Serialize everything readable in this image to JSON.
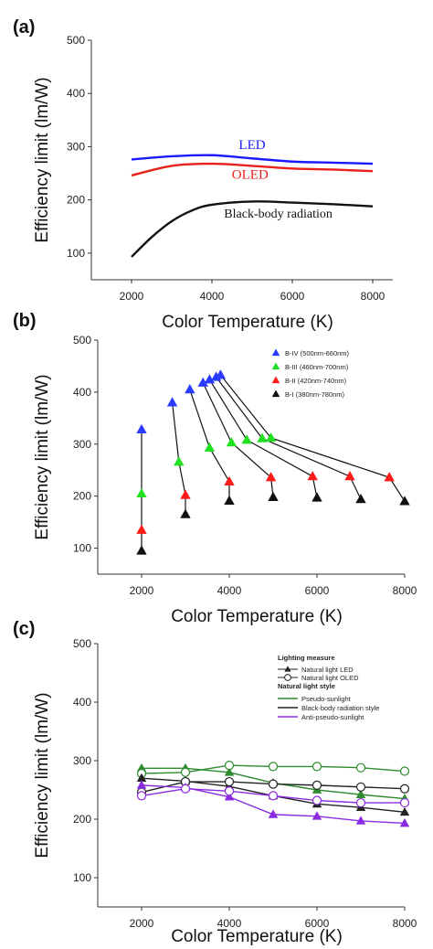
{
  "chart_data": [
    {
      "panel": "(a)",
      "type": "line",
      "xlabel": "Color Temperature (K)",
      "ylabel": "Efficiency limit (lm/W)",
      "xlim": [
        1000,
        8500
      ],
      "ylim": [
        50,
        500
      ],
      "xticks": [
        2000,
        4000,
        6000,
        8000
      ],
      "yticks": [
        100,
        200,
        300,
        400,
        500
      ],
      "series": [
        {
          "name": "LED",
          "color": "#1a1aff",
          "x": [
            2000,
            3000,
            4000,
            5000,
            6000,
            7000,
            8000
          ],
          "y": [
            276,
            282,
            284,
            278,
            272,
            270,
            268
          ]
        },
        {
          "name": "OLED",
          "color": "#e8201a",
          "x": [
            2000,
            3000,
            4000,
            5000,
            6000,
            7000,
            8000
          ],
          "y": [
            246,
            264,
            268,
            264,
            259,
            257,
            254
          ]
        },
        {
          "name": "Black-body radiation",
          "color": "#111111",
          "x": [
            2000,
            2500,
            3000,
            3500,
            4000,
            5000,
            6000,
            7000,
            8000
          ],
          "y": [
            93,
            130,
            160,
            180,
            191,
            197,
            195,
            192,
            188
          ]
        }
      ]
    },
    {
      "panel": "(b)",
      "type": "line",
      "xlabel": "Color Temperature (K)",
      "ylabel": "Efficiency limit (lm/W)",
      "xlim": [
        1000,
        8000
      ],
      "ylim": [
        50,
        500
      ],
      "xticks": [
        2000,
        4000,
        6000,
        8000
      ],
      "yticks": [
        100,
        200,
        300,
        400,
        500
      ],
      "series": [
        {
          "name": "B-IV (500nm-660nm)",
          "color": "#2a3bff",
          "x": [
            2000,
            2700,
            3100,
            3400,
            3550,
            3700,
            3800
          ],
          "y": [
            328,
            380,
            405,
            418,
            424,
            429,
            433
          ]
        },
        {
          "name": "B-III (460nm-700nm)",
          "color": "#22e022",
          "x": [
            2000,
            2850,
            3550,
            4050,
            4400,
            4750,
            4950
          ],
          "y": [
            205,
            266,
            293,
            303,
            308,
            311,
            312
          ]
        },
        {
          "name": "B-II (420nm-740nm)",
          "color": "#ff1a1a",
          "x": [
            2000,
            3000,
            4000,
            4950,
            5900,
            6750,
            7650
          ],
          "y": [
            135,
            202,
            228,
            236,
            238,
            238,
            236
          ]
        },
        {
          "name": "B-I (380nm-780nm)",
          "color": "#111111",
          "x": [
            2000,
            3000,
            4000,
            5000,
            6000,
            7000,
            8000
          ],
          "y": [
            95,
            165,
            191,
            198,
            197,
            194,
            190
          ]
        }
      ],
      "links": [
        [
          [
            2000,
            95
          ],
          [
            2000,
            135
          ],
          [
            2000,
            205
          ],
          [
            2000,
            328
          ]
        ],
        [
          [
            3000,
            165
          ],
          [
            3000,
            202
          ],
          [
            2850,
            266
          ],
          [
            2700,
            380
          ]
        ],
        [
          [
            4000,
            191
          ],
          [
            4000,
            228
          ],
          [
            3550,
            293
          ],
          [
            3100,
            405
          ]
        ],
        [
          [
            5000,
            198
          ],
          [
            4950,
            236
          ],
          [
            4050,
            303
          ],
          [
            3400,
            418
          ]
        ],
        [
          [
            6000,
            197
          ],
          [
            5900,
            238
          ],
          [
            4400,
            308
          ],
          [
            3550,
            424
          ]
        ],
        [
          [
            7000,
            194
          ],
          [
            6750,
            238
          ],
          [
            4750,
            311
          ],
          [
            3700,
            429
          ]
        ],
        [
          [
            8000,
            190
          ],
          [
            7650,
            236
          ],
          [
            4950,
            312
          ],
          [
            3800,
            433
          ]
        ]
      ]
    },
    {
      "panel": "(c)",
      "type": "line",
      "xlabel": "Color Temperature (K)",
      "ylabel": "Efficiency limit (lm/W)",
      "xlim": [
        1000,
        8000
      ],
      "ylim": [
        50,
        500
      ],
      "xticks": [
        2000,
        4000,
        6000,
        8000
      ],
      "yticks": [
        100,
        200,
        300,
        400,
        500
      ],
      "legend": {
        "title1": "Lighting measure",
        "marker_items": [
          "Natural light LED",
          "Natural light OLED"
        ],
        "title2": "Natural light style",
        "line_items": [
          "Pseudo-sunlight",
          "Black-body radiation style",
          "Anti-pseudo-sunlight"
        ]
      },
      "series": [
        {
          "style": "Pseudo-sunlight",
          "measure": "Natural light LED",
          "color": "#2e8b2e",
          "marker": "triangle-filled",
          "x": [
            2000,
            3000,
            4000,
            5000,
            6000,
            7000,
            8000
          ],
          "y": [
            287,
            287,
            280,
            262,
            250,
            242,
            235
          ]
        },
        {
          "style": "Pseudo-sunlight",
          "measure": "Natural light OLED",
          "color": "#2e8b2e",
          "marker": "circle-open",
          "x": [
            2000,
            3000,
            4000,
            5000,
            6000,
            7000,
            8000
          ],
          "y": [
            278,
            280,
            292,
            290,
            290,
            288,
            282
          ]
        },
        {
          "style": "Black-body radiation style",
          "measure": "Natural light LED",
          "color": "#222222",
          "marker": "triangle-filled",
          "x": [
            2000,
            3000,
            4000,
            5000,
            6000,
            7000,
            8000
          ],
          "y": [
            270,
            265,
            256,
            240,
            226,
            220,
            212
          ]
        },
        {
          "style": "Black-body radiation style",
          "measure": "Natural light OLED",
          "color": "#222222",
          "marker": "circle-open",
          "x": [
            2000,
            3000,
            4000,
            5000,
            6000,
            7000,
            8000
          ],
          "y": [
            246,
            264,
            264,
            260,
            258,
            255,
            252
          ]
        },
        {
          "style": "Anti-pseudo-sunlight",
          "measure": "Natural light LED",
          "color": "#8a2be2",
          "marker": "triangle-filled",
          "x": [
            2000,
            3000,
            4000,
            5000,
            6000,
            7000,
            8000
          ],
          "y": [
            258,
            254,
            238,
            208,
            205,
            197,
            193
          ]
        },
        {
          "style": "Anti-pseudo-sunlight",
          "measure": "Natural light OLED",
          "color": "#8a2be2",
          "marker": "circle-open",
          "x": [
            2000,
            3000,
            4000,
            5000,
            6000,
            7000,
            8000
          ],
          "y": [
            240,
            252,
            248,
            240,
            232,
            228,
            228
          ]
        }
      ]
    }
  ]
}
